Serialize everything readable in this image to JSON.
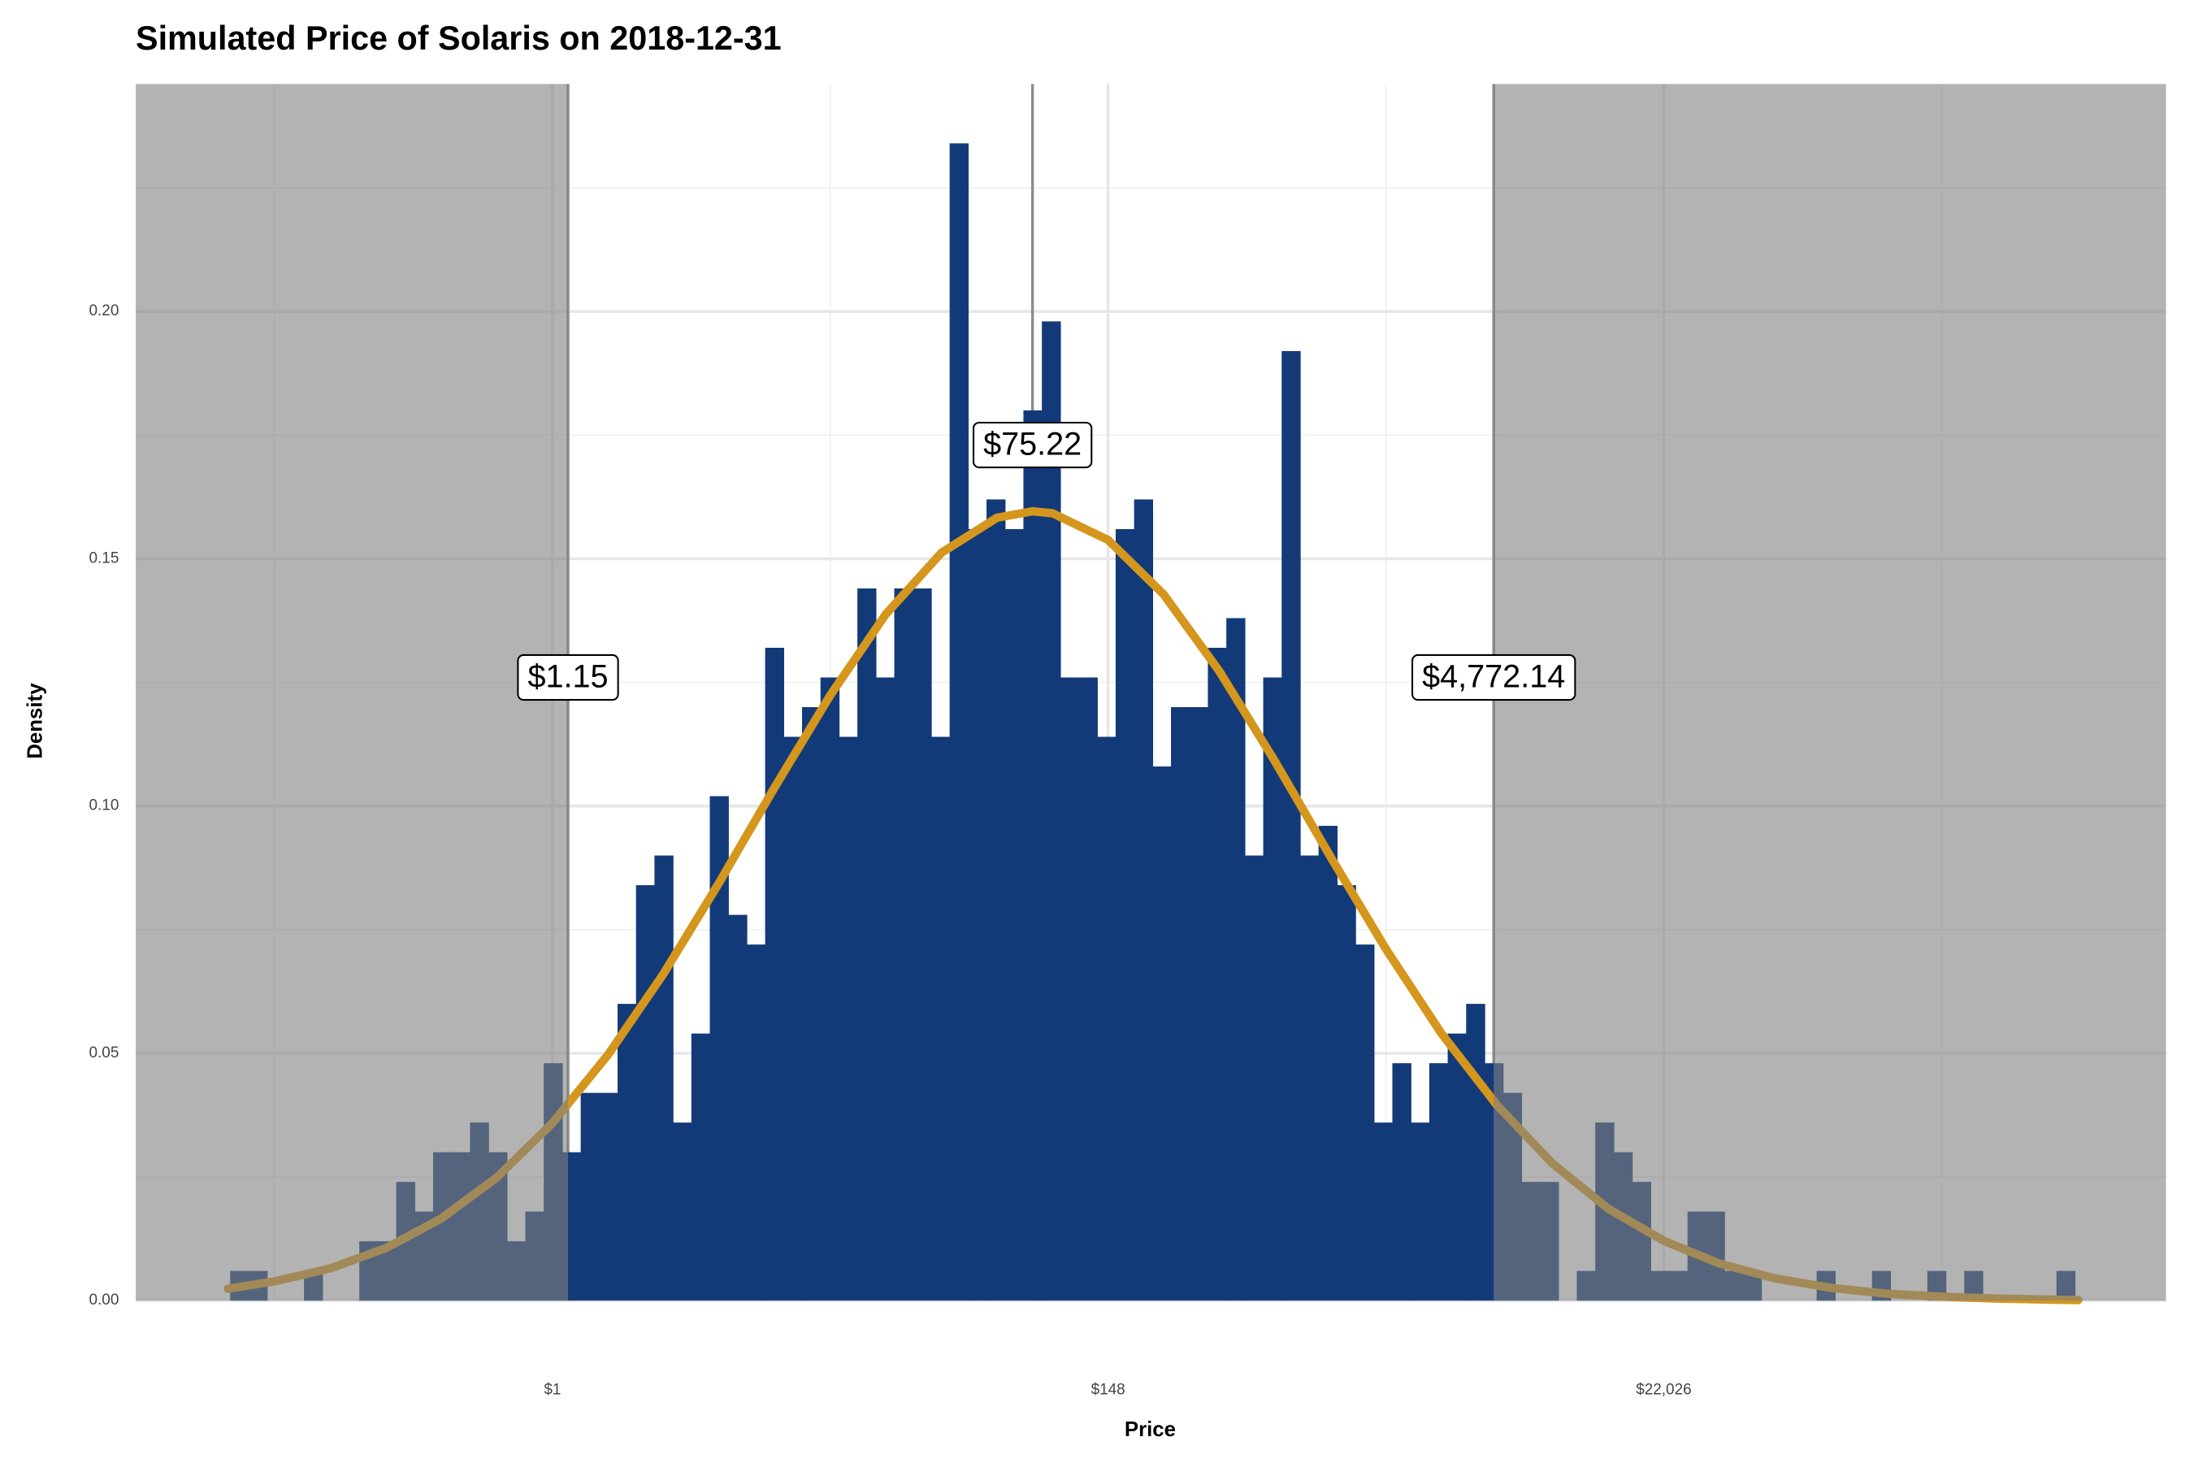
{
  "chart_data": {
    "type": "histogram",
    "title": "Simulated Price of Solaris on 2018-12-31",
    "xlabel": "Price",
    "ylabel": "Density",
    "color": "#133a78",
    "bins": [
      -2.9,
      -2.734,
      -2.568,
      -2.402,
      -2.236,
      -2.07,
      -1.904,
      -1.738,
      -1.572,
      -1.406,
      -1.24,
      -1.074,
      -0.908,
      -0.742,
      -0.576,
      -0.41,
      -0.244,
      -0.078,
      0.088,
      0.254,
      0.42,
      0.586,
      0.752,
      0.918,
      1.084,
      1.25,
      1.416,
      1.582,
      1.748,
      1.914,
      2.08,
      2.246,
      2.412,
      2.578,
      2.744,
      2.91,
      3.076,
      3.242,
      3.408,
      3.574,
      3.74,
      3.906,
      4.072,
      4.238,
      4.404,
      4.57,
      4.736,
      4.902,
      5.068,
      5.234,
      5.4,
      5.566,
      5.732,
      5.898,
      6.064,
      6.23,
      6.396,
      6.562,
      6.728,
      6.894,
      7.06,
      7.226,
      7.392,
      7.558,
      7.724,
      7.89,
      8.056,
      8.222,
      8.388,
      8.554,
      8.72,
      8.886,
      9.052,
      9.218,
      9.384,
      9.55,
      9.716,
      9.882,
      10.048,
      10.214,
      10.38,
      10.546,
      10.712,
      10.878,
      11.044,
      11.21,
      11.376,
      11.542,
      11.708,
      11.874,
      12.04,
      12.206,
      12.372,
      12.538,
      12.704,
      12.87,
      13.036,
      13.202,
      13.368,
      13.534,
      13.7
    ],
    "values": [
      0.006,
      0.006,
      0,
      0,
      0.006,
      0,
      0,
      0.012,
      0.012,
      0.024,
      0.018,
      0.03,
      0.03,
      0.036,
      0.03,
      0.012,
      0.018,
      0.048,
      0.03,
      0.042,
      0.042,
      0.06,
      0.084,
      0.09,
      0.036,
      0.054,
      0.102,
      0.078,
      0.072,
      0.132,
      0.114,
      0.12,
      0.126,
      0.114,
      0.144,
      0.126,
      0.144,
      0.144,
      0.114,
      0.234,
      0.156,
      0.162,
      0.156,
      0.18,
      0.198,
      0.126,
      0.126,
      0.114,
      0.156,
      0.162,
      0.108,
      0.12,
      0.12,
      0.132,
      0.138,
      0.09,
      0.126,
      0.192,
      0.09,
      0.096,
      0.084,
      0.072,
      0.036,
      0.048,
      0.036,
      0.048,
      0.054,
      0.06,
      0.048,
      0.042,
      0.024,
      0.024,
      0,
      0.006,
      0.036,
      0.03,
      0.024,
      0.006,
      0.006,
      0.018,
      0.018,
      0.006,
      0.006,
      0,
      0,
      0,
      0.006,
      0,
      0,
      0.006,
      0,
      0,
      0.006,
      0,
      0.006,
      0,
      0,
      0,
      0,
      0.006
    ],
    "curve": {
      "color": "#d4961c",
      "x": [
        -2.92,
        -2.5,
        -2,
        -1.5,
        -1,
        -0.5,
        0,
        0.5,
        1,
        1.5,
        2,
        2.5,
        3,
        3.5,
        4,
        4.32,
        4.5,
        5,
        5.5,
        6,
        6.5,
        7,
        7.5,
        8,
        8.5,
        9,
        9.5,
        10,
        10.5,
        11,
        11.5,
        12,
        12.5,
        13,
        13.73
      ],
      "y": [
        0.0024,
        0.0039,
        0.0065,
        0.0106,
        0.0166,
        0.0249,
        0.0359,
        0.0497,
        0.0661,
        0.0845,
        0.1038,
        0.1224,
        0.1388,
        0.1512,
        0.1583,
        0.1596,
        0.1592,
        0.1538,
        0.1428,
        0.1273,
        0.1091,
        0.0898,
        0.0711,
        0.054,
        0.0395,
        0.0277,
        0.0186,
        0.0121,
        0.0075,
        0.0045,
        0.0026,
        0.0014,
        0.0008,
        0.0004,
        0.0001
      ]
    },
    "annotations": [
      {
        "x": 0.14,
        "y": 0.126,
        "label": "$1.15"
      },
      {
        "x": 4.32,
        "y": 0.173,
        "label": "$75.22"
      },
      {
        "x": 8.47,
        "y": 0.126,
        "label": "$4,772.14"
      }
    ],
    "shade_color": "rgba(128,128,128,0.6)",
    "xlim": [
      -3.75,
      14.52
    ],
    "xticks": [
      {
        "value": 0,
        "label": "$1"
      },
      {
        "value": 5,
        "label": "$148"
      },
      {
        "value": 10,
        "label": "$22,026"
      }
    ],
    "xminor": [
      -2.5,
      2.5,
      7.5,
      12.5
    ],
    "ylim": [
      0,
      0.246
    ],
    "yticks": [
      {
        "value": 0,
        "label": "0.00"
      },
      0.05,
      {
        "value": 0.1,
        "label": "0.10"
      },
      0.15,
      {
        "value": 0.2,
        "label": "0.20"
      }
    ],
    "yminor": [
      0.025,
      0.075,
      0.125,
      0.175,
      0.225
    ],
    "grid": true
  }
}
